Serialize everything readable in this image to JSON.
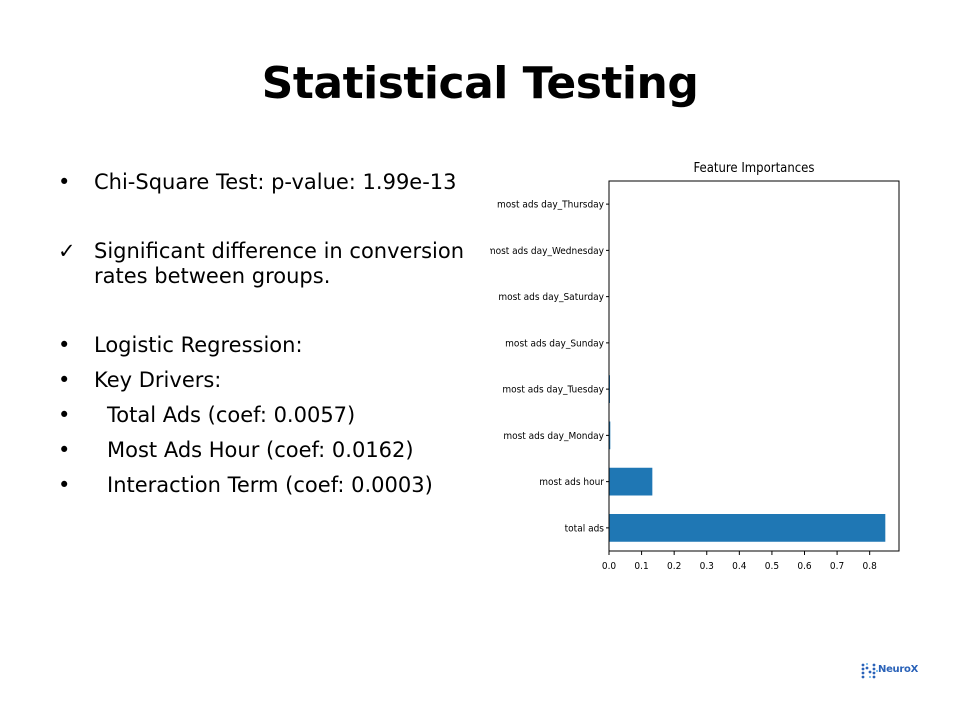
{
  "slide": {
    "title": "Statistical Testing",
    "bullets": [
      {
        "marker": "•",
        "text": "Chi-Square Test: p-value: 1.99e-13"
      },
      {
        "marker": "✓",
        "text": "Significant difference in conversion rates between groups."
      },
      {
        "marker": "•",
        "text": "Logistic Regression:"
      },
      {
        "marker": "•",
        "text": "Key Drivers:"
      },
      {
        "marker": "•",
        "text": "Total Ads (coef: 0.0057)"
      },
      {
        "marker": "•",
        "text": "Most Ads Hour (coef: 0.0162)"
      },
      {
        "marker": "•",
        "text": "Interaction Term (coef: 0.0003)"
      }
    ]
  },
  "logo": {
    "text": "NeuroX",
    "icon": "dotted-n-logo-icon",
    "color": "#2a62b8"
  },
  "chart_data": {
    "type": "bar",
    "orientation": "horizontal",
    "title": "Feature Importances",
    "xlabel": "",
    "ylabel": "",
    "categories": [
      "most ads day_Thursday",
      "most ads day_Wednesday",
      "most ads day_Saturday",
      "most ads day_Sunday",
      "most ads day_Tuesday",
      "most ads day_Monday",
      "most ads hour",
      "total ads"
    ],
    "values": [
      0.0,
      0.0,
      0.0,
      0.0,
      0.003,
      0.004,
      0.133,
      0.848
    ],
    "xlim": [
      0,
      0.89
    ],
    "xticks": [
      "0.0",
      "0.1",
      "0.2",
      "0.3",
      "0.4",
      "0.5",
      "0.6",
      "0.7",
      "0.8"
    ],
    "bar_color": "#1f77b4",
    "grid": false,
    "legend": "none"
  }
}
